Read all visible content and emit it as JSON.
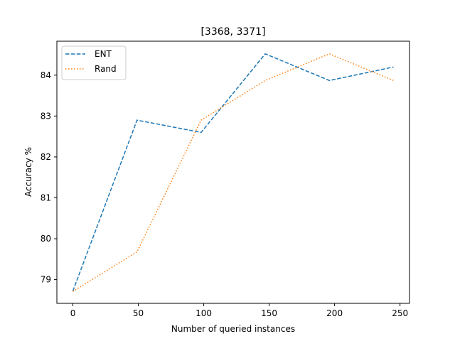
{
  "chart_data": {
    "type": "line",
    "title": "[3368, 3371]",
    "xlabel": "Number of queried instances",
    "ylabel": "Accuracy %",
    "xlim": [
      -12.25,
      257.25
    ],
    "ylim": [
      78.42,
      84.83
    ],
    "xticks": [
      0,
      50,
      100,
      150,
      200,
      250
    ],
    "yticks": [
      79,
      80,
      81,
      82,
      83,
      84
    ],
    "grid": false,
    "legend_position": "top-left",
    "series": [
      {
        "name": "ENT",
        "color": "#1f77b4",
        "style": "dashed",
        "x": [
          0,
          49,
          98,
          147,
          196,
          245
        ],
        "y": [
          78.72,
          82.9,
          82.6,
          84.52,
          83.87,
          84.2
        ]
      },
      {
        "name": "Rand",
        "color": "#ff7f0e",
        "style": "dotted",
        "x": [
          0,
          49,
          98,
          147,
          196,
          245
        ],
        "y": [
          78.71,
          79.68,
          82.9,
          83.87,
          84.52,
          83.87
        ]
      }
    ]
  }
}
